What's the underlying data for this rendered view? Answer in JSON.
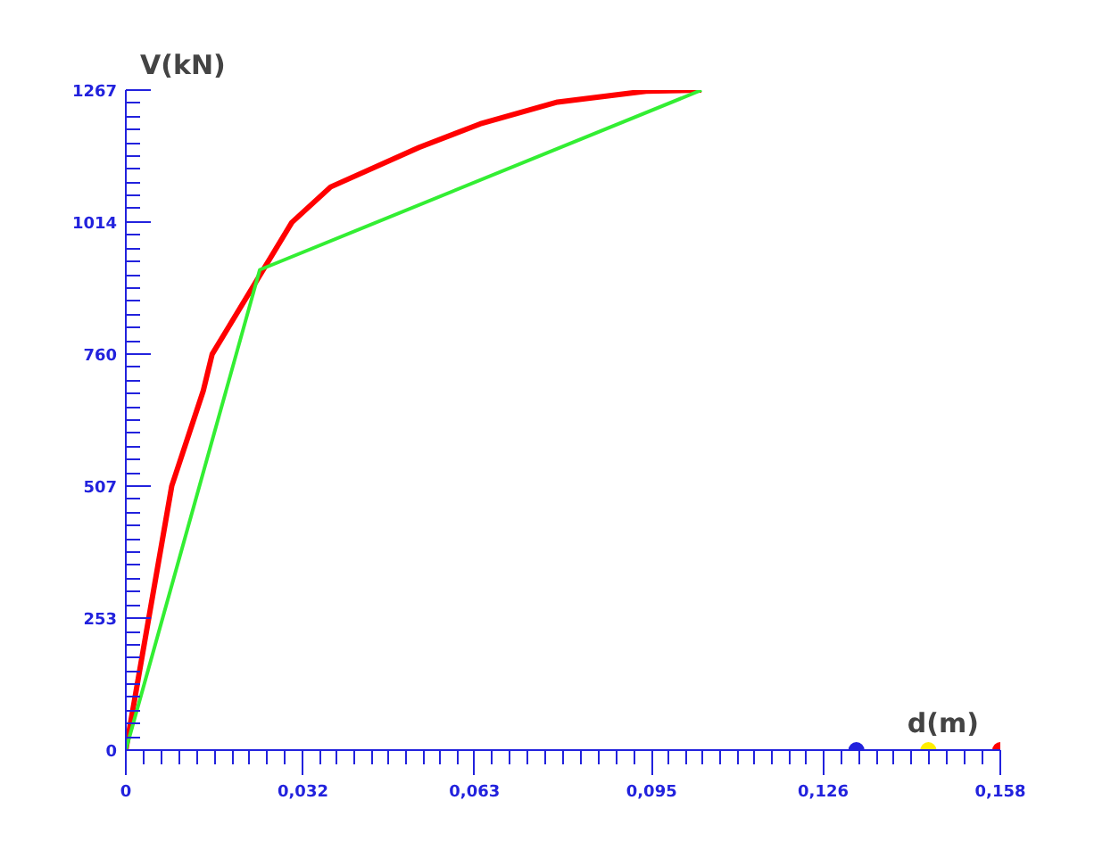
{
  "chart_data": {
    "type": "line",
    "xlabel": "d(m)",
    "ylabel": "V(kN)",
    "xlim": [
      0,
      0.158
    ],
    "ylim": [
      0,
      1267
    ],
    "xticks": [
      0,
      {
        "value": 0.032,
        "label": "0,032"
      },
      {
        "value": 0.063,
        "label": "0,063"
      },
      {
        "value": 0.095,
        "label": "0,095"
      },
      {
        "value": 0.126,
        "label": "0,126"
      },
      {
        "value": 0.158,
        "label": "0,158"
      }
    ],
    "yticks": [
      0,
      253,
      507,
      760,
      1014,
      1267
    ],
    "grid": false,
    "marker": "none",
    "line_style": "solid",
    "series": [
      {
        "color": "#ff0000",
        "x": [
          0,
          0.0083,
          0.014,
          0.0156,
          0.03,
          0.037,
          0.053,
          0.064,
          0.078,
          0.094,
          0.104
        ],
        "values": [
          0,
          507,
          690,
          760,
          1013,
          1081,
          1157,
          1202,
          1244,
          1265,
          1267
        ]
      },
      {
        "color": "#33ee33",
        "x": [
          0,
          0.0242,
          0.104
        ],
        "values": [
          0,
          922,
          1267
        ]
      },
      {
        "type": "scatter",
        "marker": "circle",
        "colors": [
          "#2222dd",
          "#ffee00",
          "#ff0000"
        ],
        "x": [
          0.132,
          0.145,
          0.158
        ],
        "values": [
          0,
          0,
          0
        ]
      }
    ]
  }
}
